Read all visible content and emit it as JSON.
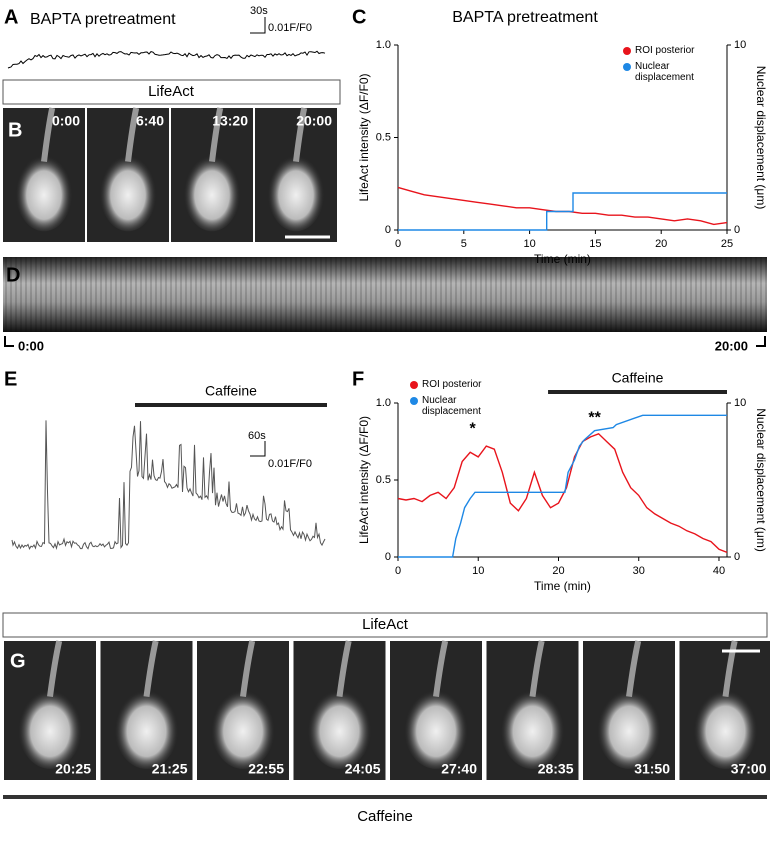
{
  "panels": {
    "A": {
      "label": "A",
      "title": "BAPTA pretreatment",
      "scale_time": "30s",
      "scale_amp": "0.01F/F0"
    },
    "B": {
      "label": "B",
      "header": "LifeAct",
      "times": [
        "0:00",
        "6:40",
        "13:20",
        "20:00"
      ]
    },
    "C": {
      "label": "C"
    },
    "D": {
      "label": "D",
      "start": "0:00",
      "end": "20:00"
    },
    "E": {
      "label": "E",
      "bar": "Caffeine",
      "scale_time": "60s",
      "scale_amp": "0.01F/F0"
    },
    "F": {
      "label": "F"
    },
    "G": {
      "label": "G",
      "header": "LifeAct",
      "times": [
        "20:25",
        "21:25",
        "22:55",
        "24:05",
        "27:40",
        "28:35",
        "31:50",
        "37:00"
      ],
      "footer": "Caffeine"
    }
  },
  "chart_data": [
    {
      "type": "line",
      "title": "BAPTA pretreatment",
      "xlabel": "Time (min)",
      "ylabel": "LifeAct intensity (ΔF/F0)",
      "y2label": "Nuclear displacement (μm)",
      "xlim": [
        0,
        25
      ],
      "xticks": [
        0,
        5,
        10,
        15,
        20,
        25
      ],
      "ylim": [
        0,
        1
      ],
      "yticks": [
        0,
        0.5,
        {
          "value": 1,
          "label": "1.0"
        }
      ],
      "y2lim": [
        0,
        10
      ],
      "y2ticks": [
        0,
        10
      ],
      "legend": "upper right",
      "series": [
        {
          "name": "ROI posterior",
          "color": "#e8141c",
          "x": [
            0,
            1,
            2,
            3,
            4,
            5,
            6,
            7,
            8,
            9,
            10,
            11,
            12,
            13,
            14,
            15,
            16,
            17,
            18,
            19,
            20,
            21,
            22,
            23,
            24,
            25
          ],
          "values": [
            0.23,
            0.21,
            0.19,
            0.18,
            0.17,
            0.16,
            0.15,
            0.14,
            0.13,
            0.12,
            0.12,
            0.11,
            0.1,
            0.1,
            0.09,
            0.09,
            0.08,
            0.08,
            0.07,
            0.07,
            0.06,
            0.05,
            0.06,
            0.05,
            0.03,
            0.04
          ]
        },
        {
          "name": "Nuclear displacement",
          "color": "#1e88e5",
          "axis": "y2",
          "x": [
            0,
            11.3,
            11.3,
            13.3,
            13.3,
            25
          ],
          "values": [
            0,
            0,
            1,
            1,
            2,
            2
          ]
        }
      ]
    },
    {
      "type": "line",
      "xlabel": "Time (min)",
      "ylabel": "LifeAct intensity (ΔF/F0)",
      "y2label": "Nuclear displacement (μm)",
      "xlim": [
        0,
        41
      ],
      "xticks": [
        0,
        10,
        20,
        30,
        40
      ],
      "ylim": [
        0,
        1
      ],
      "yticks": [
        0,
        0.5,
        {
          "value": 1,
          "label": "1.0"
        }
      ],
      "y2lim": [
        0,
        10
      ],
      "y2ticks": [
        0,
        10
      ],
      "legend": "upper left",
      "annotations": [
        {
          "text": "Caffeine"
        },
        {
          "text": "*"
        },
        {
          "text": "**"
        }
      ],
      "series": [
        {
          "name": "ROI posterior",
          "color": "#e8141c",
          "x": [
            0,
            1,
            2,
            3,
            4,
            5,
            6,
            7,
            8,
            9,
            10,
            11,
            12,
            13,
            14,
            15,
            16,
            17,
            18,
            19,
            20,
            21,
            22,
            23,
            24,
            25,
            26,
            27,
            28,
            29,
            30,
            31,
            32,
            33,
            34,
            35,
            36,
            37,
            38,
            39,
            40,
            41
          ],
          "values": [
            0.38,
            0.37,
            0.38,
            0.36,
            0.4,
            0.42,
            0.38,
            0.45,
            0.62,
            0.68,
            0.65,
            0.72,
            0.7,
            0.55,
            0.35,
            0.3,
            0.38,
            0.55,
            0.4,
            0.32,
            0.35,
            0.45,
            0.65,
            0.75,
            0.78,
            0.8,
            0.75,
            0.7,
            0.55,
            0.45,
            0.4,
            0.32,
            0.28,
            0.25,
            0.22,
            0.2,
            0.17,
            0.15,
            0.12,
            0.1,
            0.05,
            0.03
          ]
        },
        {
          "name": "Nuclear displacement",
          "color": "#1e88e5",
          "axis": "y2",
          "x": [
            0,
            6.8,
            7.2,
            7.8,
            8.3,
            9,
            9.6,
            18.5,
            20.8,
            21.2,
            22,
            22.6,
            23.2,
            24.5,
            26.8,
            27.2,
            30.5,
            41
          ],
          "values": [
            0,
            0,
            1.2,
            2.2,
            3.2,
            3.8,
            4.2,
            4.2,
            4.2,
            5.5,
            6.3,
            7.2,
            7.6,
            8.2,
            8.4,
            8.6,
            9.2,
            9.2
          ]
        }
      ]
    }
  ]
}
